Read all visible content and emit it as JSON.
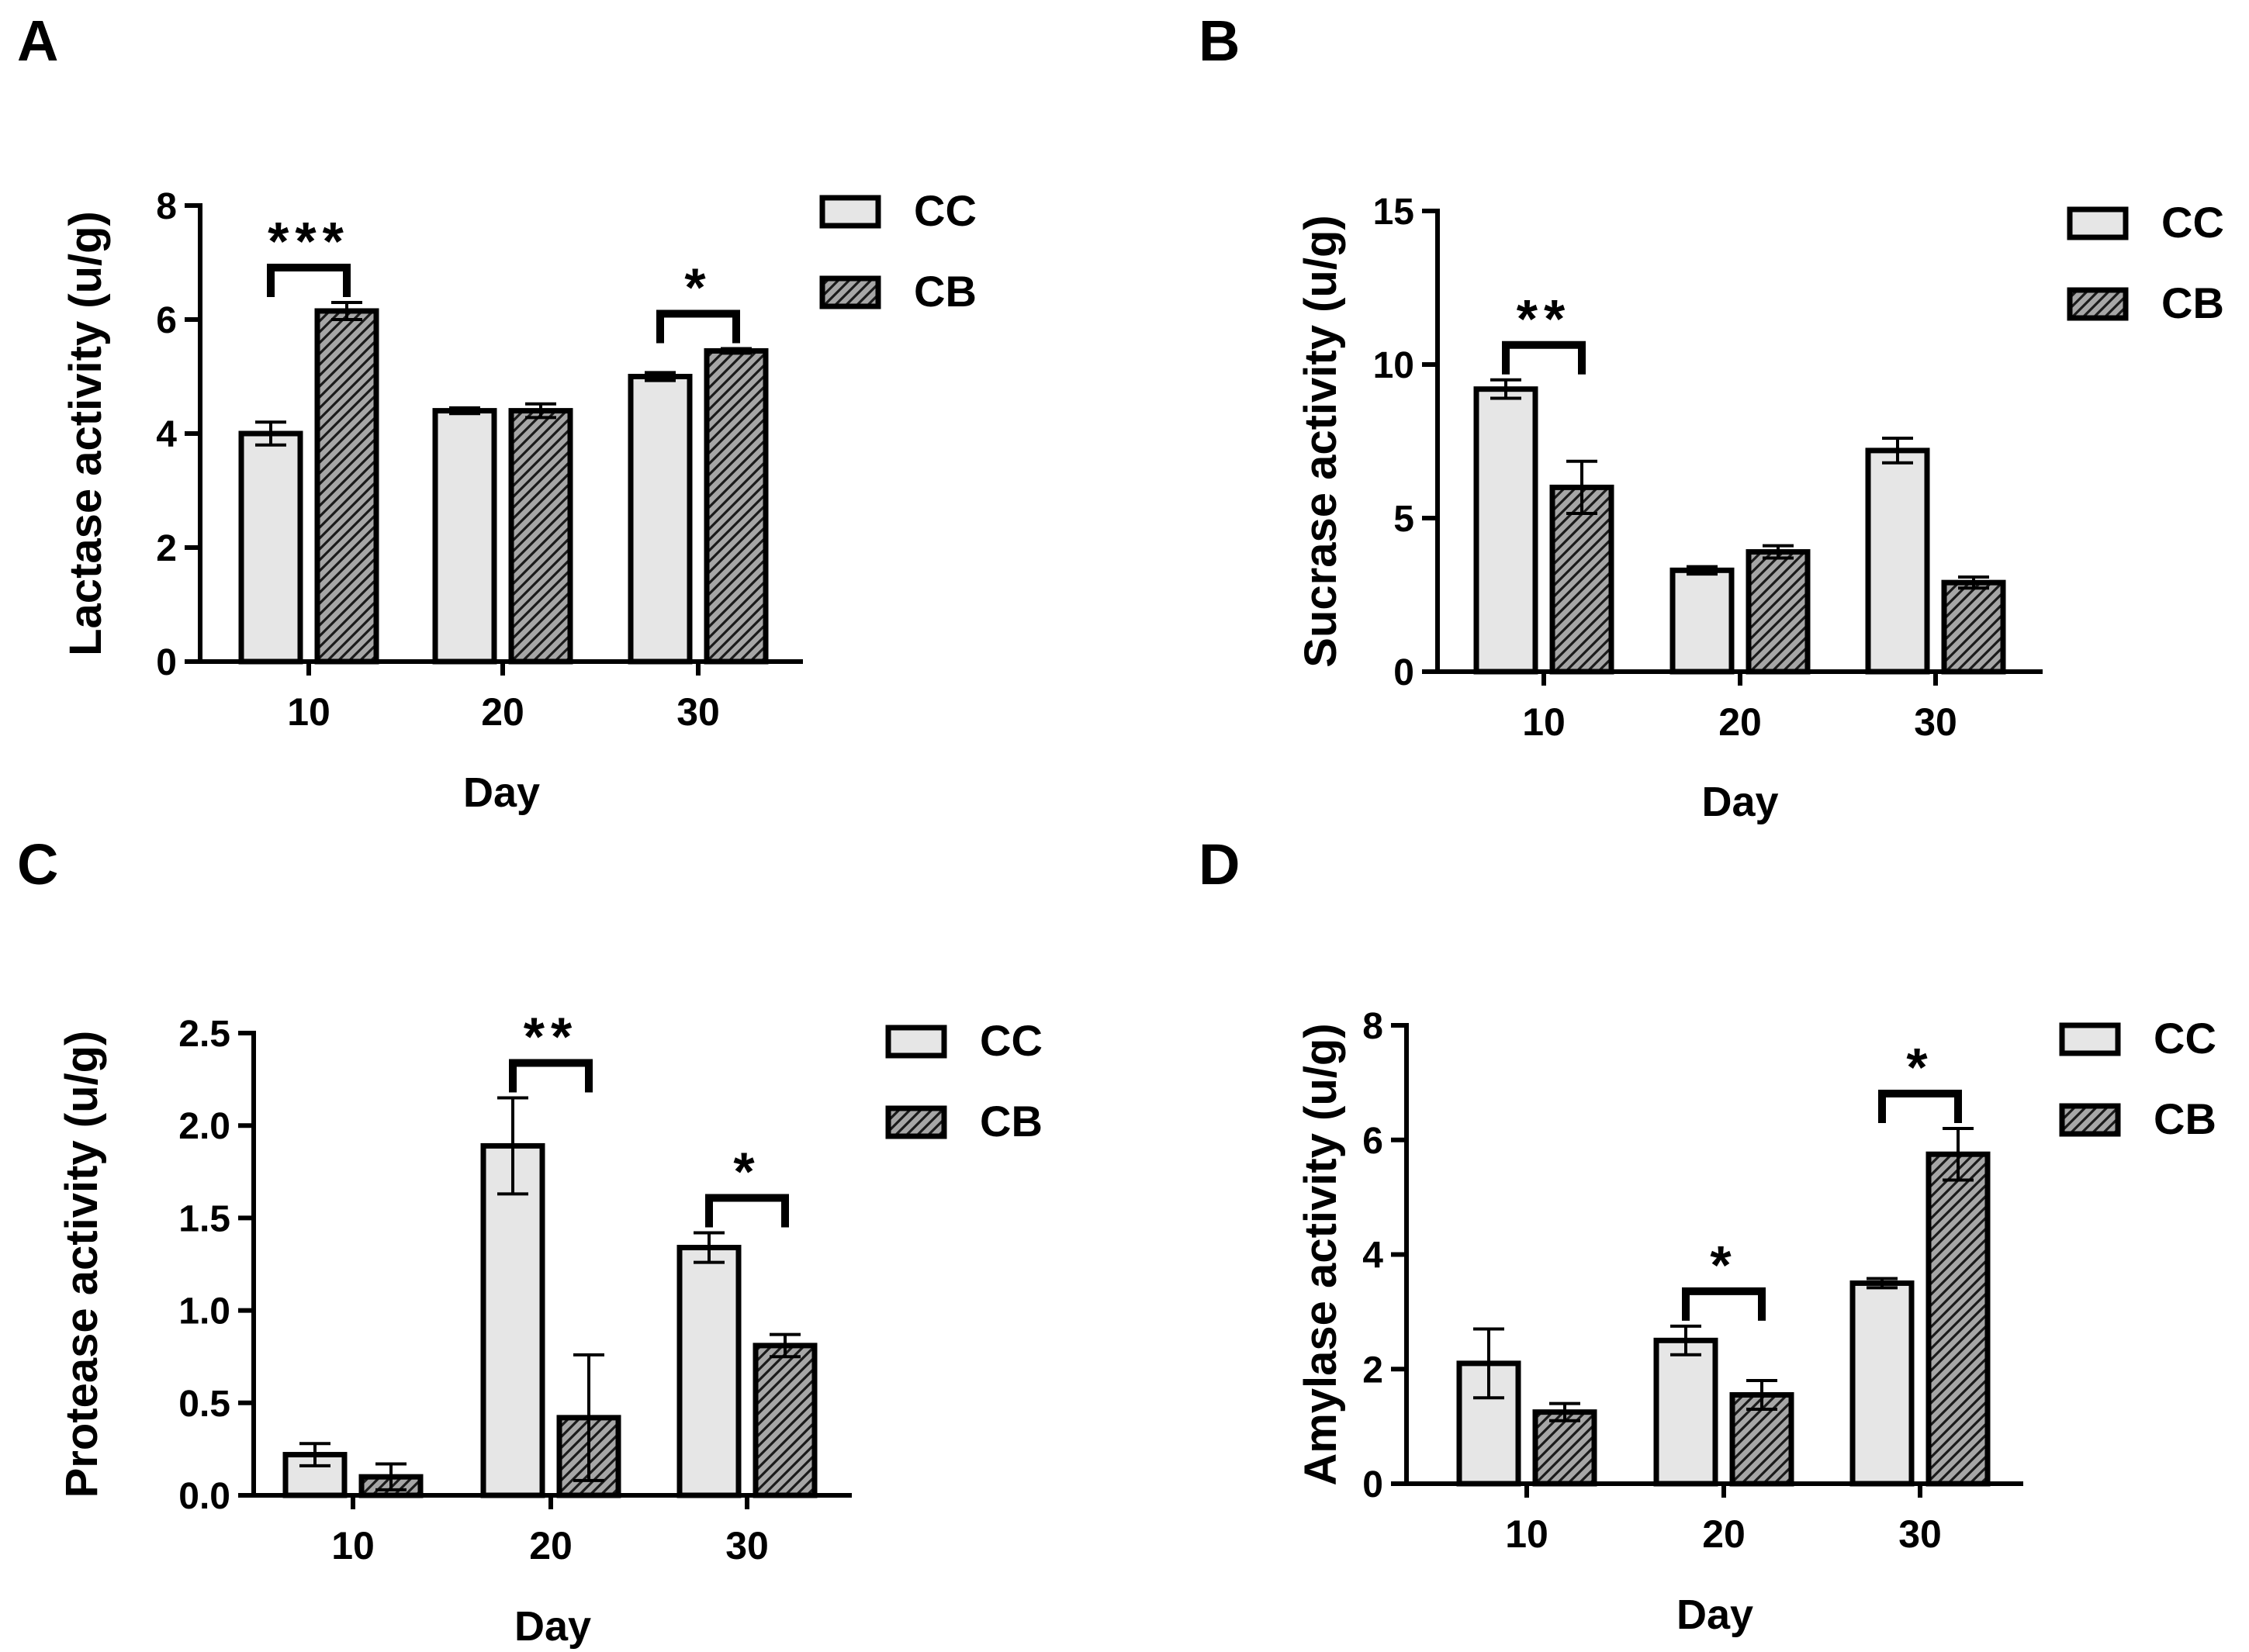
{
  "colors": {
    "cc_fill": "#e6e6e6",
    "cb_fill": "#a6a6a6",
    "cb_hatch": "#1a1a1a",
    "stroke": "#000000",
    "background": "#ffffff"
  },
  "legend_labels": {
    "cc": "CC",
    "cb": "CB"
  },
  "chart_data": [
    {
      "panel": "A",
      "type": "bar",
      "title": "",
      "xlabel": "Day",
      "ylabel": "Lactase activity (u/g)",
      "categories": [
        "10",
        "20",
        "30"
      ],
      "ylim": [
        0,
        8
      ],
      "yticks": [
        0,
        2,
        4,
        6,
        8
      ],
      "ytick_labels": [
        "0",
        "2",
        "4",
        "6",
        "8"
      ],
      "legend_position": "top-right",
      "series": [
        {
          "name": "CC",
          "values": [
            4.0,
            4.4,
            5.0
          ],
          "errors": [
            0.2,
            0.05,
            0.07
          ]
        },
        {
          "name": "CB",
          "values": [
            6.15,
            4.4,
            5.45
          ],
          "errors": [
            0.15,
            0.12,
            0.04
          ]
        }
      ],
      "annotations": [
        {
          "category": 0,
          "label": "***"
        },
        {
          "category": 2,
          "label": "*"
        }
      ]
    },
    {
      "panel": "B",
      "type": "bar",
      "title": "",
      "xlabel": "Day",
      "ylabel": "Sucrase activity (u/g)",
      "categories": [
        "10",
        "20",
        "30"
      ],
      "ylim": [
        0,
        15
      ],
      "yticks": [
        0,
        5,
        10,
        15
      ],
      "ytick_labels": [
        "0",
        "5",
        "10",
        "15"
      ],
      "legend_position": "top-right",
      "series": [
        {
          "name": "CC",
          "values": [
            9.2,
            3.3,
            7.2
          ],
          "errors": [
            0.3,
            0.12,
            0.4
          ]
        },
        {
          "name": "CB",
          "values": [
            6.0,
            3.9,
            2.9
          ],
          "errors": [
            0.85,
            0.2,
            0.18
          ]
        }
      ],
      "annotations": [
        {
          "category": 0,
          "label": "**"
        }
      ]
    },
    {
      "panel": "C",
      "type": "bar",
      "title": "",
      "xlabel": "Day",
      "ylabel": "Protease activity (u/g)",
      "categories": [
        "10",
        "20",
        "30"
      ],
      "ylim": [
        0,
        2.5
      ],
      "yticks": [
        0,
        0.5,
        1.0,
        1.5,
        2.0,
        2.5
      ],
      "ytick_labels": [
        "0.0",
        "0.5",
        "1.0",
        "1.5",
        "2.0",
        "2.5"
      ],
      "legend_position": "top-right",
      "series": [
        {
          "name": "CC",
          "values": [
            0.22,
            1.89,
            1.34
          ],
          "errors": [
            0.06,
            0.26,
            0.08
          ]
        },
        {
          "name": "CB",
          "values": [
            0.1,
            0.42,
            0.81
          ],
          "errors": [
            0.07,
            0.34,
            0.06
          ]
        }
      ],
      "annotations": [
        {
          "category": 1,
          "label": "**"
        },
        {
          "category": 2,
          "label": "*"
        }
      ]
    },
    {
      "panel": "D",
      "type": "bar",
      "title": "",
      "xlabel": "Day",
      "ylabel": "Amylase activity (u/g)",
      "categories": [
        "10",
        "20",
        "30"
      ],
      "ylim": [
        0,
        8
      ],
      "yticks": [
        0,
        2,
        4,
        6,
        8
      ],
      "ytick_labels": [
        "0",
        "2",
        "4",
        "6",
        "8"
      ],
      "legend_position": "top-right",
      "series": [
        {
          "name": "CC",
          "values": [
            2.1,
            2.5,
            3.5
          ],
          "errors": [
            0.6,
            0.25,
            0.08
          ]
        },
        {
          "name": "CB",
          "values": [
            1.25,
            1.55,
            5.75
          ],
          "errors": [
            0.15,
            0.25,
            0.45
          ]
        }
      ],
      "annotations": [
        {
          "category": 1,
          "label": "*"
        },
        {
          "category": 2,
          "label": "*"
        }
      ]
    }
  ]
}
